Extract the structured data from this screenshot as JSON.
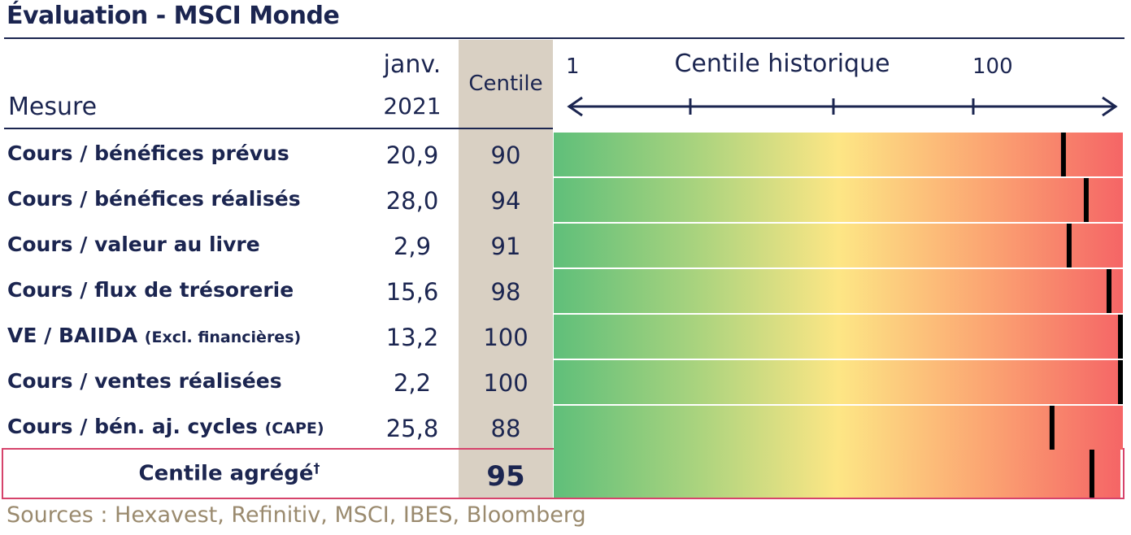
{
  "title": "Évaluation - MSCI Monde",
  "header": {
    "mesure": "Mesure",
    "date_line1": "janv.",
    "date_line2": "2021",
    "centile": "Centile"
  },
  "chart_data": {
    "type": "table",
    "axis": {
      "label": "Centile historique",
      "min_label": "1",
      "max_label": "100",
      "range": [
        1,
        100
      ]
    },
    "rows": [
      {
        "label": "Cours / bénéfices prévus",
        "note": "",
        "value": "20,9",
        "centile": 90
      },
      {
        "label": "Cours / bénéfices réalisés",
        "note": "",
        "value": "28,0",
        "centile": 94
      },
      {
        "label": "Cours / valeur au livre",
        "note": "",
        "value": "2,9",
        "centile": 91
      },
      {
        "label": "Cours / flux de trésorerie",
        "note": "",
        "value": "15,6",
        "centile": 98
      },
      {
        "label": "VE / BAIIDA",
        "note": "(Excl. financières)",
        "value": "13,2",
        "centile": 100
      },
      {
        "label": "Cours / ventes réalisées",
        "note": "",
        "value": "2,2",
        "centile": 100
      },
      {
        "label": "Cours / bén. aj. cycles",
        "note": "(CAPE)",
        "value": "25,8",
        "centile": 88
      }
    ],
    "aggregate": {
      "label": "Centile agrégé",
      "marker": "†",
      "centile": 95
    },
    "gradient_colors": [
      "#5fbf7a",
      "#a9d37e",
      "#fde685",
      "#fba572",
      "#f56566"
    ]
  },
  "source": "Sources : Hexavest, Refinitiv, MSCI, IBES, Bloomberg"
}
